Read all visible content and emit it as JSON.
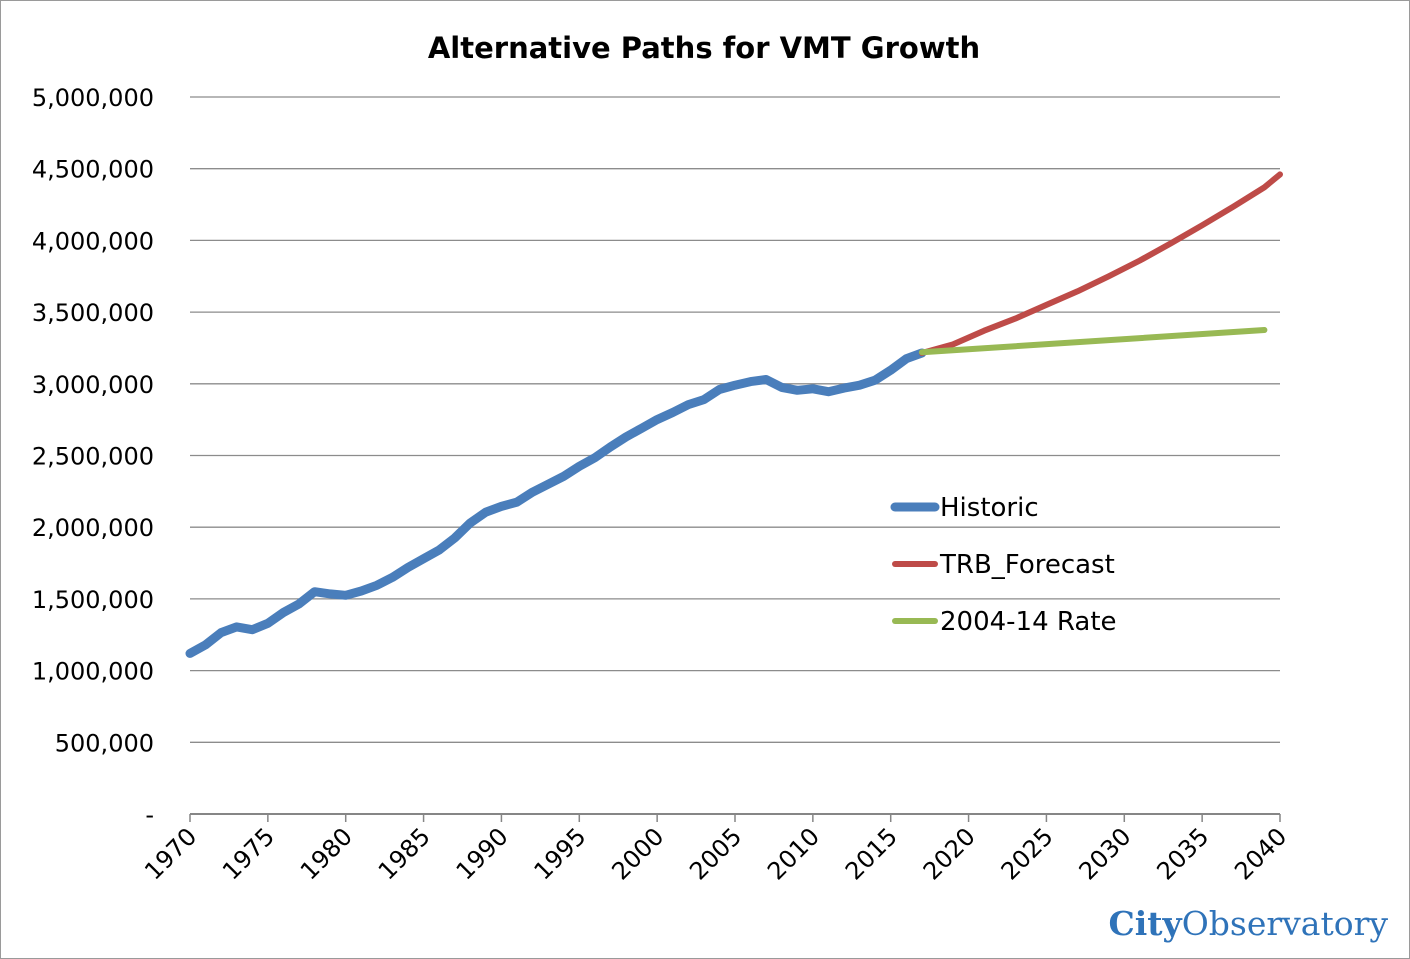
{
  "chart_data": {
    "type": "line",
    "title": "Alternative Paths for VMT Growth",
    "xlabel": "",
    "ylabel": "",
    "xlim": [
      1970,
      2040
    ],
    "ylim": [
      0,
      5000000
    ],
    "x_ticks": [
      "1970",
      "1975",
      "1980",
      "1985",
      "1990",
      "1995",
      "2000",
      "2005",
      "2010",
      "2015",
      "2020",
      "2025",
      "2030",
      "2035",
      "2040"
    ],
    "y_ticks": [
      "-",
      "500,000",
      "1,000,000",
      "1,500,000",
      "2,000,000",
      "2,500,000",
      "3,000,000",
      "3,500,000",
      "4,000,000",
      "4,500,000",
      "5,000,000"
    ],
    "grid": true,
    "legend_position": "right-middle",
    "series": [
      {
        "name": "Historic",
        "color": "#4a7ebb",
        "x": [
          1970,
          1971,
          1972,
          1973,
          1974,
          1975,
          1976,
          1977,
          1978,
          1979,
          1980,
          1981,
          1982,
          1983,
          1984,
          1985,
          1986,
          1987,
          1988,
          1989,
          1990,
          1991,
          1992,
          1993,
          1994,
          1995,
          1996,
          1997,
          1998,
          1999,
          2000,
          2001,
          2002,
          2003,
          2004,
          2005,
          2006,
          2007,
          2008,
          2009,
          2010,
          2011,
          2012,
          2013,
          2014,
          2015,
          2016,
          2017
        ],
        "values": [
          1120000,
          1180000,
          1265000,
          1305000,
          1285000,
          1330000,
          1405000,
          1465000,
          1550000,
          1535000,
          1525000,
          1555000,
          1595000,
          1650000,
          1720000,
          1780000,
          1840000,
          1925000,
          2030000,
          2105000,
          2145000,
          2175000,
          2245000,
          2300000,
          2355000,
          2425000,
          2485000,
          2560000,
          2630000,
          2690000,
          2750000,
          2800000,
          2855000,
          2890000,
          2960000,
          2990000,
          3015000,
          3030000,
          2975000,
          2955000,
          2965000,
          2945000,
          2970000,
          2990000,
          3025000,
          3095000,
          3175000,
          3215000
        ]
      },
      {
        "name": "TRB_Forecast",
        "color": "#be4b48",
        "x": [
          2017,
          2019,
          2021,
          2023,
          2025,
          2027,
          2029,
          2031,
          2033,
          2035,
          2037,
          2039,
          2040
        ],
        "values": [
          3215000,
          3275000,
          3370000,
          3455000,
          3550000,
          3645000,
          3750000,
          3860000,
          3980000,
          4105000,
          4235000,
          4370000,
          4460000
        ]
      },
      {
        "name": "2004-14 Rate",
        "color": "#98b954",
        "x": [
          2017,
          2039
        ],
        "values": [
          3220000,
          3375000
        ]
      }
    ]
  },
  "watermark": {
    "brand_bold": "City",
    "brand_regular": "Observatory"
  }
}
